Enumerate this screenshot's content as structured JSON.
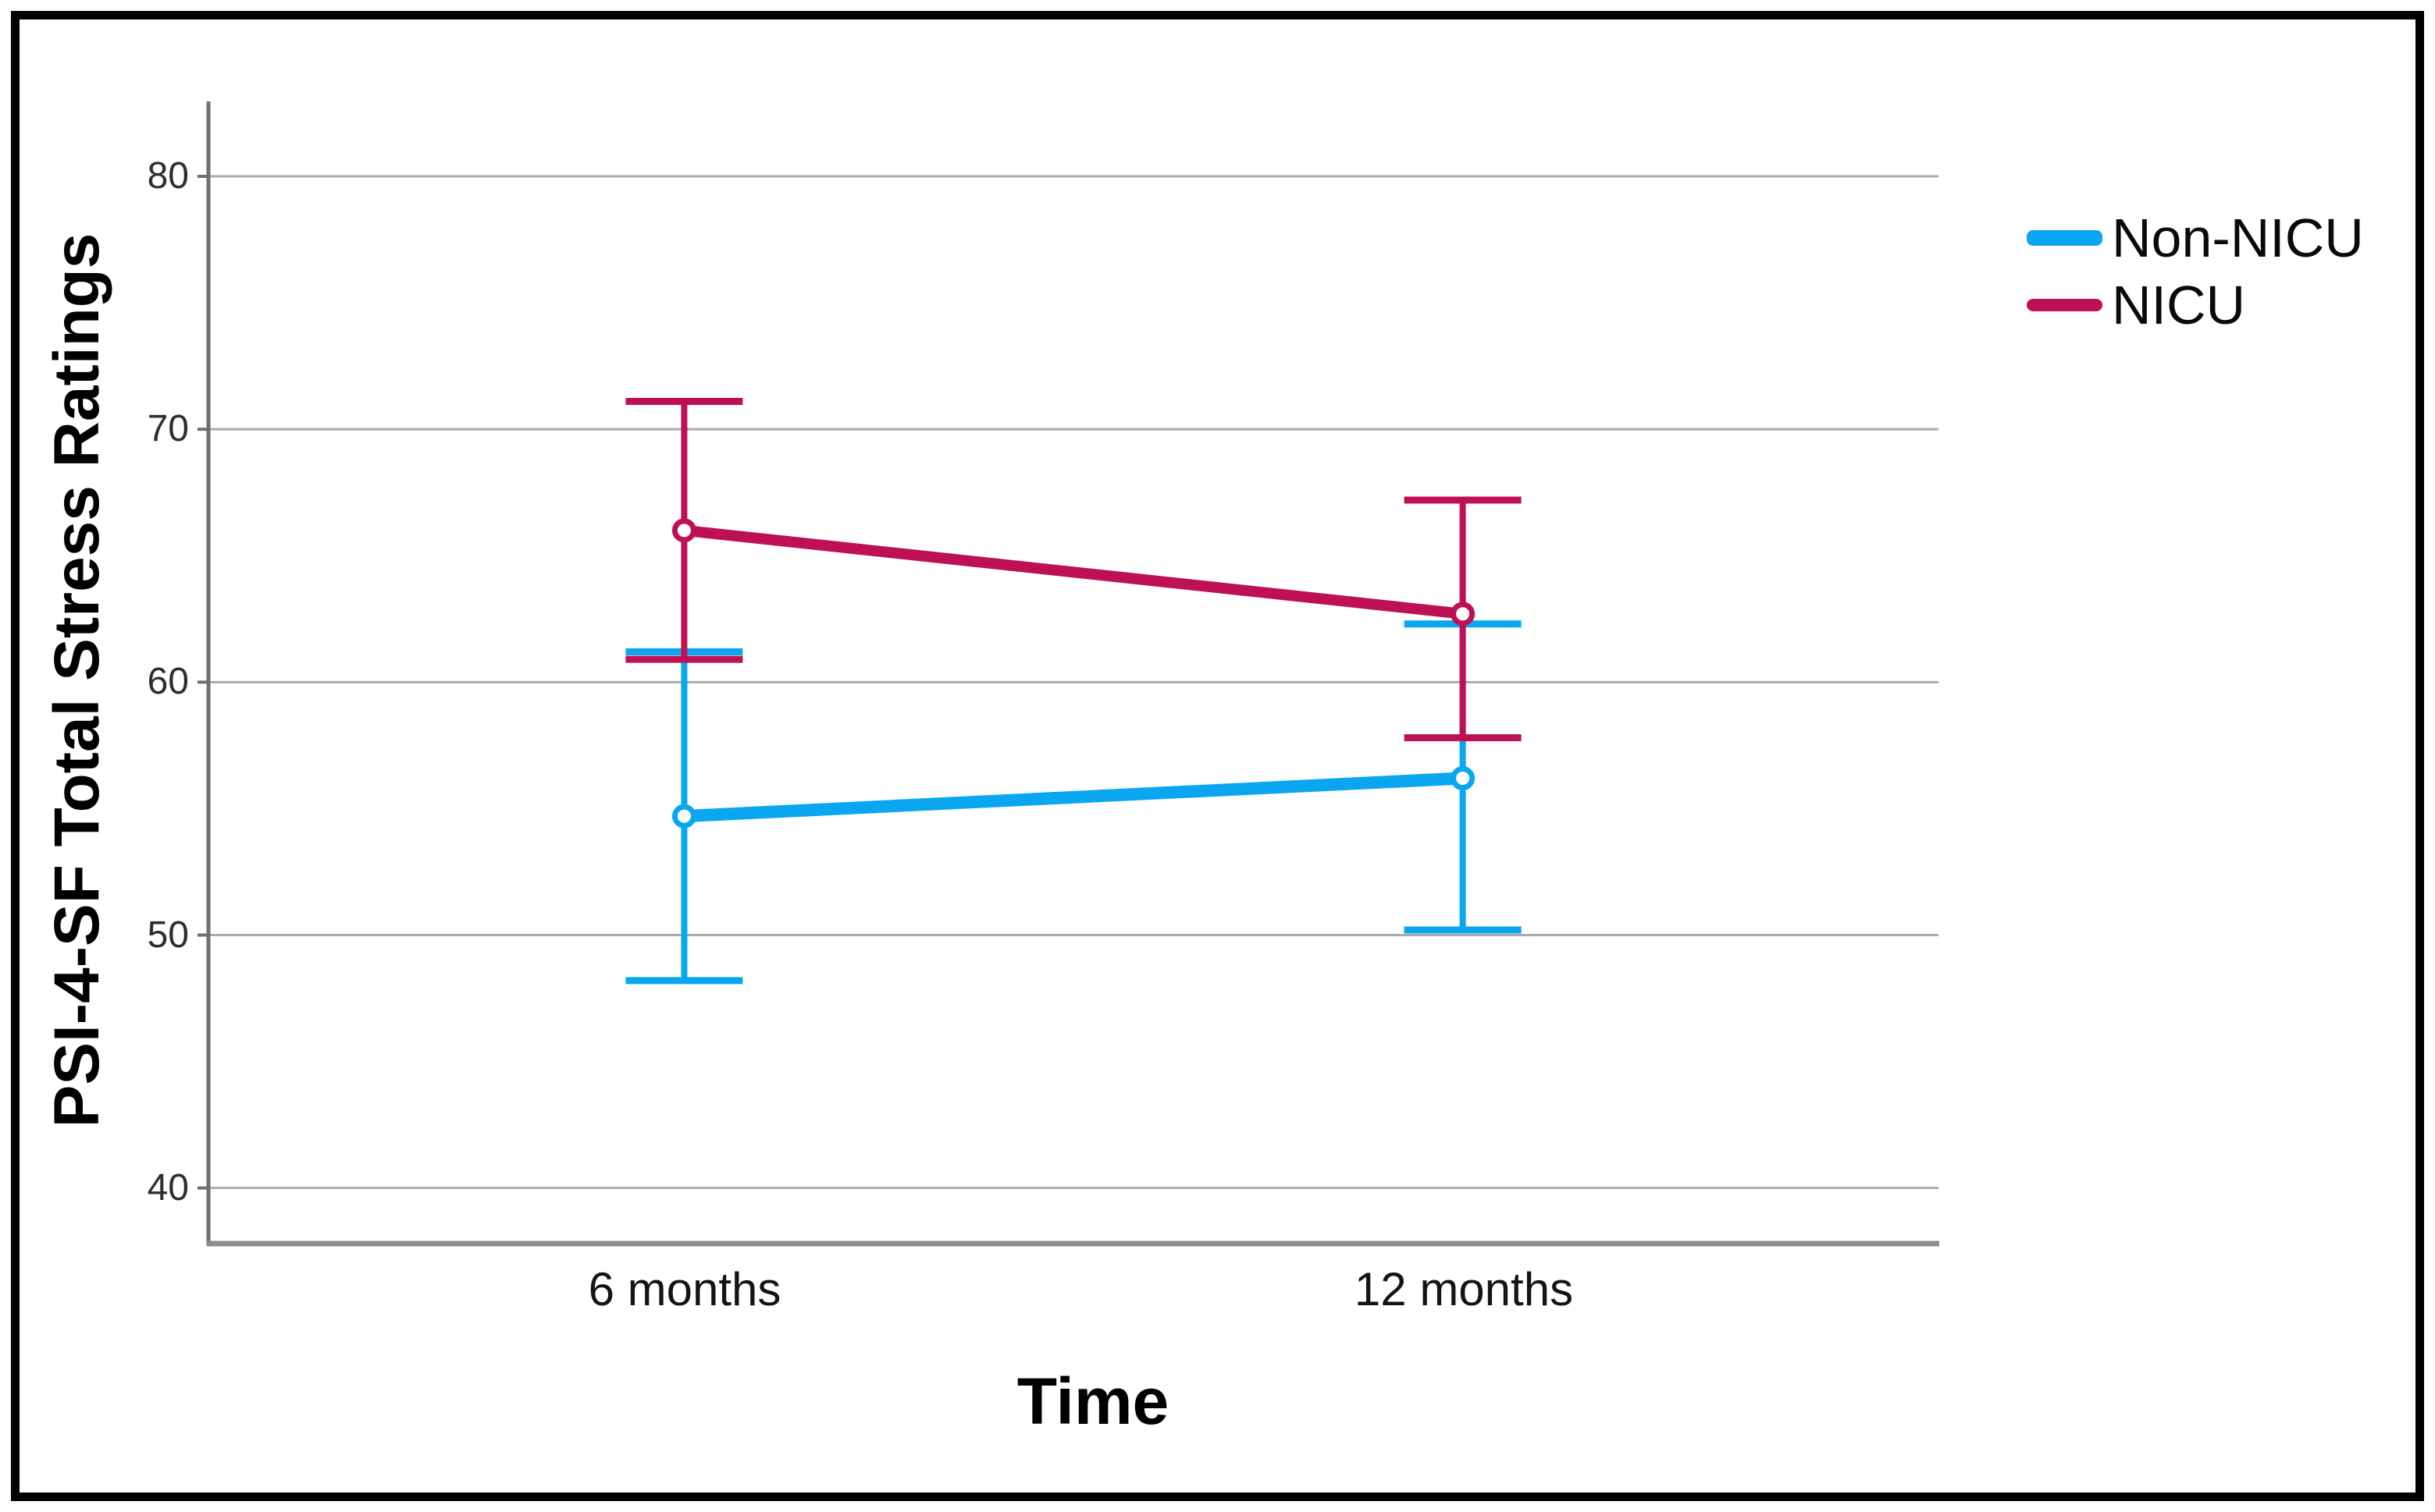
{
  "window": {
    "background_color": "#FFFFFF",
    "border_color": "#000000"
  },
  "chart_data": {
    "type": "line",
    "title": "",
    "xlabel": "Time",
    "ylabel": "PSI-4-SF Total Stress Ratings",
    "categories": [
      "6 months",
      "12 months"
    ],
    "yticks": [
      40,
      50,
      60,
      70,
      80
    ],
    "ylim": [
      37.8,
      82.9
    ],
    "grid": "horizontal-only",
    "gridline_color": "#ABABAB",
    "axis_line_color": "#6E6E6E",
    "x_axis_line_color": "#8C8C8C",
    "tick_label_color": "#2E2E2E",
    "marker": "open-circle",
    "error_bars": true,
    "legend_position": "top-right",
    "series": [
      {
        "name": "Non-NICU",
        "color": "#0AA7F0",
        "values": [
          54.7,
          56.2
        ],
        "ci_low": [
          48.2,
          50.2
        ],
        "ci_high": [
          61.2,
          62.3
        ]
      },
      {
        "name": "NICU",
        "color": "#BE1155",
        "values": [
          66.0,
          62.7
        ],
        "ci_low": [
          60.9,
          57.8
        ],
        "ci_high": [
          71.1,
          67.2
        ]
      }
    ]
  }
}
